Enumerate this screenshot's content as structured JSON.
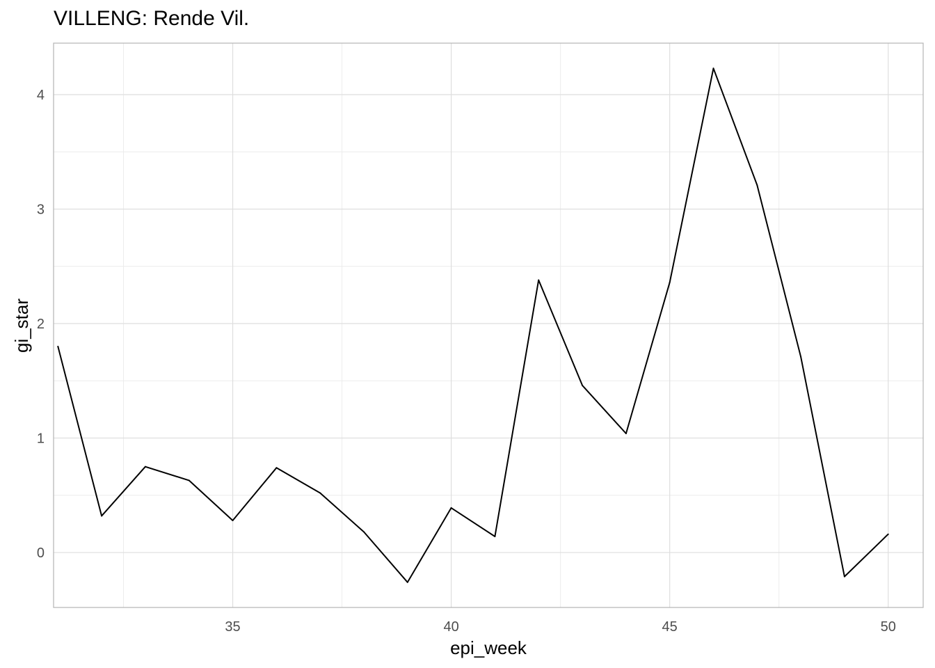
{
  "chart_data": {
    "type": "line",
    "title": "VILLENG: Rende Vil.",
    "xlabel": "epi_week",
    "ylabel": "gi_star",
    "xlim": [
      30.9,
      50.8
    ],
    "ylim": [
      -0.48,
      4.45
    ],
    "x_ticks": [
      35,
      40,
      45,
      50
    ],
    "x_minor": [
      32.5,
      37.5,
      42.5,
      47.5
    ],
    "y_ticks": [
      0,
      1,
      2,
      3,
      4
    ],
    "y_minor": [
      0.5,
      1.5,
      2.5,
      3.5
    ],
    "grid": true,
    "series": [
      {
        "color": "#000000",
        "x": [
          31,
          32,
          33,
          34,
          35,
          36,
          37,
          38,
          39,
          40,
          41,
          42,
          43,
          44,
          45,
          46,
          47,
          48,
          49,
          50
        ],
        "y": [
          1.8,
          0.32,
          0.75,
          0.63,
          0.28,
          0.74,
          0.52,
          0.18,
          -0.26,
          0.39,
          0.14,
          2.38,
          1.46,
          1.04,
          2.36,
          4.23,
          3.21,
          1.71,
          -0.21,
          0.16
        ]
      }
    ]
  }
}
